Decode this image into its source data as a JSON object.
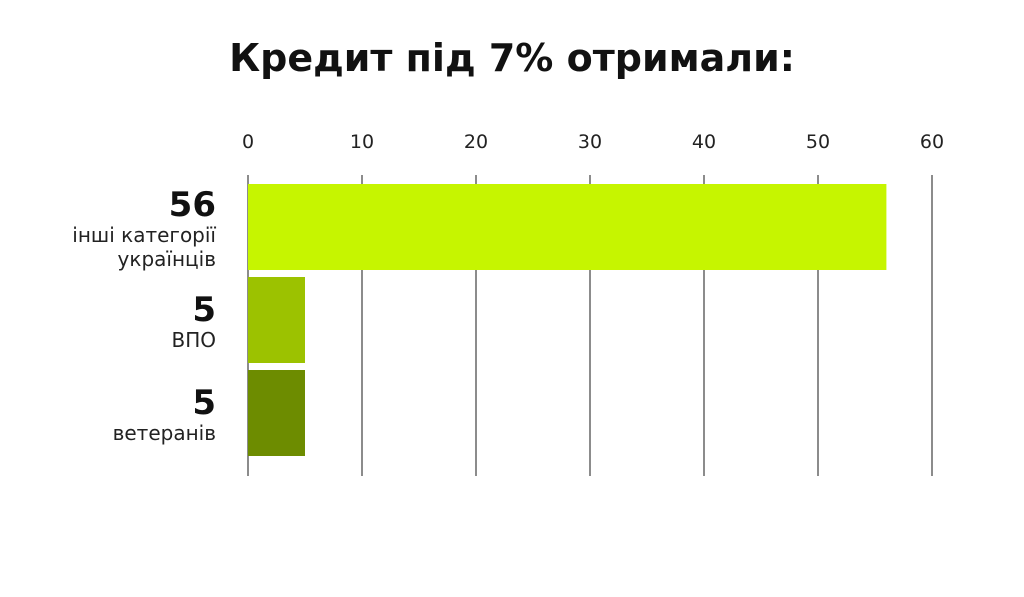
{
  "chart_data": {
    "type": "bar",
    "orientation": "horizontal",
    "title": "Кредит під 7% отримали:",
    "xlabel": "",
    "ylabel": "",
    "xlim": [
      0,
      60
    ],
    "xticks": [
      0,
      10,
      20,
      30,
      40,
      50,
      60
    ],
    "grid": true,
    "categories": [
      [
        "інші категорії",
        "українців"
      ],
      [
        "ВПО"
      ],
      [
        "ветеранів"
      ]
    ],
    "values": [
      56,
      5,
      5
    ],
    "value_labels": [
      "56",
      "5",
      "5"
    ],
    "colors": [
      "#c6f500",
      "#9cc200",
      "#6d8c00"
    ]
  }
}
